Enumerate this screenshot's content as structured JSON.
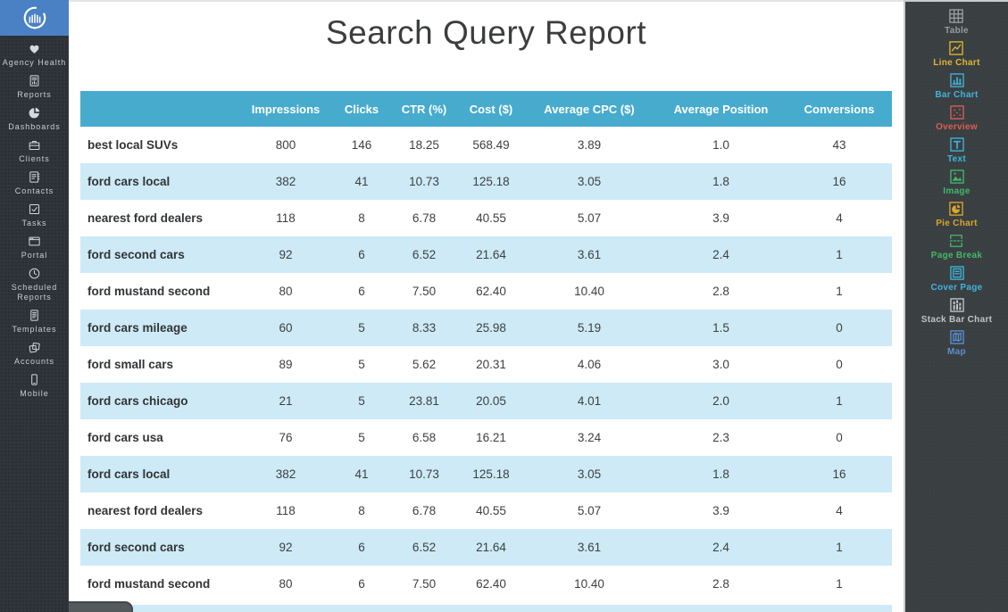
{
  "left_sidebar": {
    "items": [
      {
        "label": "Agency Health",
        "icon": "heart"
      },
      {
        "label": "Reports",
        "icon": "report"
      },
      {
        "label": "Dashboards",
        "icon": "pie"
      },
      {
        "label": "Clients",
        "icon": "briefcase"
      },
      {
        "label": "Contacts",
        "icon": "contacts"
      },
      {
        "label": "Tasks",
        "icon": "tasks"
      },
      {
        "label": "Portal",
        "icon": "portal"
      },
      {
        "label": "Scheduled Reports",
        "icon": "clock"
      },
      {
        "label": "Templates",
        "icon": "templates"
      },
      {
        "label": "Accounts",
        "icon": "accounts"
      },
      {
        "label": "Mobile",
        "icon": "mobile"
      }
    ]
  },
  "report": {
    "title": "Search Query Report",
    "table": {
      "columns": [
        "",
        "Impressions",
        "Clicks",
        "CTR (%)",
        "Cost ($)",
        "Average CPC ($)",
        "Average Position",
        "Conversions"
      ],
      "rows": [
        {
          "query": "best local SUVs",
          "impressions": "800",
          "clicks": "146",
          "ctr": "18.25",
          "cost": "568.49",
          "avg_cpc": "3.89",
          "avg_position": "1.0",
          "conversions": "43"
        },
        {
          "query": "ford cars local",
          "impressions": "382",
          "clicks": "41",
          "ctr": "10.73",
          "cost": "125.18",
          "avg_cpc": "3.05",
          "avg_position": "1.8",
          "conversions": "16"
        },
        {
          "query": "nearest ford dealers",
          "impressions": "118",
          "clicks": "8",
          "ctr": "6.78",
          "cost": "40.55",
          "avg_cpc": "5.07",
          "avg_position": "3.9",
          "conversions": "4"
        },
        {
          "query": "ford second cars",
          "impressions": "92",
          "clicks": "6",
          "ctr": "6.52",
          "cost": "21.64",
          "avg_cpc": "3.61",
          "avg_position": "2.4",
          "conversions": "1"
        },
        {
          "query": "ford mustand second",
          "impressions": "80",
          "clicks": "6",
          "ctr": "7.50",
          "cost": "62.40",
          "avg_cpc": "10.40",
          "avg_position": "2.8",
          "conversions": "1"
        },
        {
          "query": "ford cars mileage",
          "impressions": "60",
          "clicks": "5",
          "ctr": "8.33",
          "cost": "25.98",
          "avg_cpc": "5.19",
          "avg_position": "1.5",
          "conversions": "0"
        },
        {
          "query": "ford small cars",
          "impressions": "89",
          "clicks": "5",
          "ctr": "5.62",
          "cost": "20.31",
          "avg_cpc": "4.06",
          "avg_position": "3.0",
          "conversions": "0"
        },
        {
          "query": "ford cars chicago",
          "impressions": "21",
          "clicks": "5",
          "ctr": "23.81",
          "cost": "20.05",
          "avg_cpc": "4.01",
          "avg_position": "2.0",
          "conversions": "1"
        },
        {
          "query": "ford cars usa",
          "impressions": "76",
          "clicks": "5",
          "ctr": "6.58",
          "cost": "16.21",
          "avg_cpc": "3.24",
          "avg_position": "2.3",
          "conversions": "0"
        },
        {
          "query": "ford cars local",
          "impressions": "382",
          "clicks": "41",
          "ctr": "10.73",
          "cost": "125.18",
          "avg_cpc": "3.05",
          "avg_position": "1.8",
          "conversions": "16"
        },
        {
          "query": "nearest ford dealers",
          "impressions": "118",
          "clicks": "8",
          "ctr": "6.78",
          "cost": "40.55",
          "avg_cpc": "5.07",
          "avg_position": "3.9",
          "conversions": "4"
        },
        {
          "query": "ford second cars",
          "impressions": "92",
          "clicks": "6",
          "ctr": "6.52",
          "cost": "21.64",
          "avg_cpc": "3.61",
          "avg_position": "2.4",
          "conversions": "1"
        },
        {
          "query": "ford mustand second",
          "impressions": "80",
          "clicks": "6",
          "ctr": "7.50",
          "cost": "62.40",
          "avg_cpc": "10.40",
          "avg_position": "2.8",
          "conversions": "1"
        }
      ]
    }
  },
  "right_panel": {
    "items": [
      {
        "label": "Table",
        "icon": "table",
        "color": "#9a9da0"
      },
      {
        "label": "Line Chart",
        "icon": "line-chart",
        "color": "#e0b52f"
      },
      {
        "label": "Bar Chart",
        "icon": "bar-chart",
        "color": "#41b4da"
      },
      {
        "label": "Overview",
        "icon": "overview",
        "color": "#d95f52"
      },
      {
        "label": "Text",
        "icon": "text",
        "color": "#41b4da"
      },
      {
        "label": "Image",
        "icon": "image",
        "color": "#43b86a"
      },
      {
        "label": "Pie Chart",
        "icon": "pie-chart",
        "color": "#d9a62e"
      },
      {
        "label": "Page Break",
        "icon": "page-break",
        "color": "#43b86a"
      },
      {
        "label": "Cover Page",
        "icon": "cover-page",
        "color": "#41b4da"
      },
      {
        "label": "Stack Bar Chart",
        "icon": "stack-bar-chart",
        "color": "#c0c4c6"
      },
      {
        "label": "Map",
        "icon": "map",
        "color": "#5b8fd0"
      }
    ]
  },
  "colors": {
    "table_header_bg": "#47abce",
    "table_alt_row_bg": "#cdeaf6",
    "logo_bg": "#4a81c4",
    "left_sidebar_bg": "#2f353b",
    "right_panel_bg": "#3b4043"
  }
}
